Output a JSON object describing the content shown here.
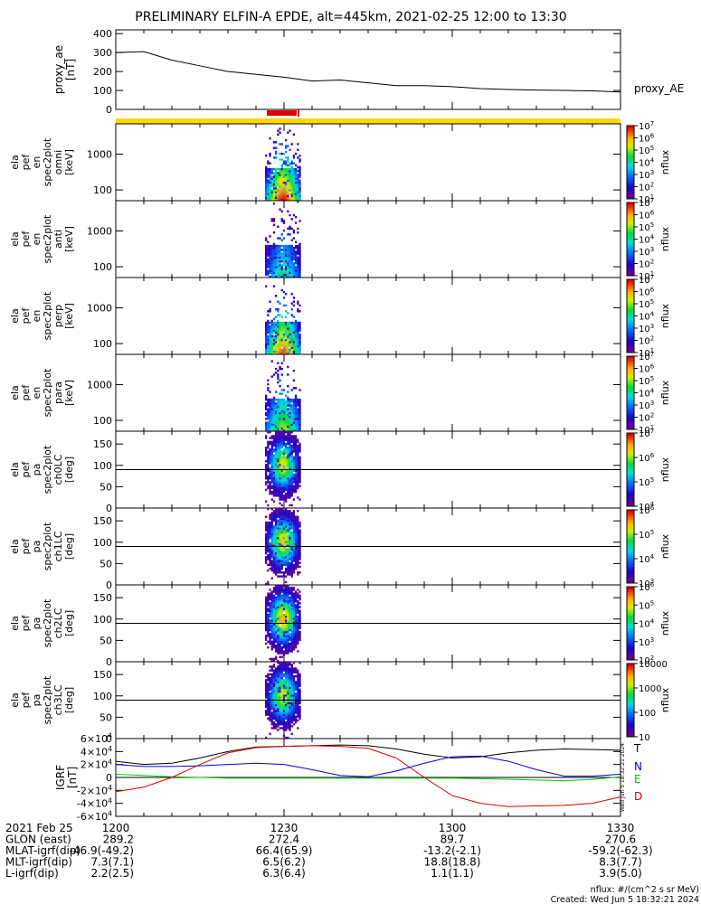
{
  "title": "PRELIMINARY ELFIN-A EPDE, alt=445km, 2021-02-25 12:00 to 13:30",
  "colors": {
    "ae_line": "#000000",
    "flag_yellow": "#ffd700",
    "flag_red": "#e00000",
    "igrf_T": "#000000",
    "igrf_N": "#0000dd",
    "igrf_E": "#00cc00",
    "igrf_D": "#dd0000"
  },
  "chart_data": [
    {
      "type": "line",
      "ylabel": "proxy_ae [nT]",
      "ylabel_lines": [
        "proxy_ae",
        "[nT]"
      ],
      "yticks": [
        "0",
        "100",
        "200",
        "300",
        "400"
      ],
      "ylim": [
        0,
        420
      ],
      "legend": [
        "proxy_AE"
      ],
      "x": [
        "12:00",
        "12:05",
        "12:10",
        "12:15",
        "12:20",
        "12:25",
        "12:30",
        "12:35",
        "12:40",
        "12:45",
        "12:50",
        "12:55",
        "13:00",
        "13:05",
        "13:10",
        "13:15",
        "13:20",
        "13:25",
        "13:30"
      ],
      "values": [
        300,
        305,
        260,
        230,
        200,
        185,
        170,
        150,
        155,
        140,
        125,
        125,
        120,
        110,
        105,
        102,
        100,
        98,
        92
      ]
    },
    {
      "type": "heatmap",
      "ylabel_lines": [
        "ela",
        "pef",
        "en",
        "spec2plot",
        "omni",
        "[keV]"
      ],
      "scale": "log",
      "yticks": [
        "100",
        "1000"
      ],
      "zlabel": "nflux",
      "zticks": [
        "10^1",
        "10^2",
        "10^3",
        "10^4",
        "10^5",
        "10^6",
        "10^7"
      ]
    },
    {
      "type": "heatmap",
      "ylabel_lines": [
        "ela",
        "pef",
        "en",
        "spec2plot",
        "anti",
        "[keV]"
      ],
      "scale": "log",
      "yticks": [
        "100",
        "1000"
      ],
      "zlabel": "nflux",
      "zticks": [
        "10^1",
        "10^2",
        "10^3",
        "10^4",
        "10^5",
        "10^6",
        "10^7"
      ]
    },
    {
      "type": "heatmap",
      "ylabel_lines": [
        "ela",
        "pef",
        "en",
        "spec2plot",
        "perp",
        "[keV]"
      ],
      "scale": "log",
      "yticks": [
        "100",
        "1000"
      ],
      "zlabel": "nflux",
      "zticks": [
        "10^1",
        "10^2",
        "10^3",
        "10^4",
        "10^5",
        "10^6",
        "10^7"
      ]
    },
    {
      "type": "heatmap",
      "ylabel_lines": [
        "ela",
        "pef",
        "en",
        "spec2plot",
        "para",
        "[keV]"
      ],
      "scale": "log",
      "yticks": [
        "100",
        "1000"
      ],
      "zlabel": "nflux",
      "zticks": [
        "10^1",
        "10^2",
        "10^3",
        "10^4",
        "10^5",
        "10^6",
        "10^7"
      ]
    },
    {
      "type": "heatmap",
      "ylabel_lines": [
        "ela",
        "pef",
        "pa",
        "spec2plot",
        "ch0LC",
        "[deg]"
      ],
      "yticks": [
        "0",
        "50",
        "100",
        "150"
      ],
      "ylim": [
        0,
        180
      ],
      "zlabel": "nflux",
      "zticks": [
        "10^4",
        "10^5",
        "10^6",
        "10^7"
      ]
    },
    {
      "type": "heatmap",
      "ylabel_lines": [
        "ela",
        "pef",
        "pa",
        "spec2plot",
        "ch1LC",
        "[deg]"
      ],
      "yticks": [
        "0",
        "50",
        "100",
        "150"
      ],
      "ylim": [
        0,
        180
      ],
      "zlabel": "nflux",
      "zticks": [
        "10^3",
        "10^4",
        "10^5",
        "10^6"
      ]
    },
    {
      "type": "heatmap",
      "ylabel_lines": [
        "ela",
        "pef",
        "pa",
        "spec2plot",
        "ch2LC",
        "[deg]"
      ],
      "yticks": [
        "0",
        "50",
        "100",
        "150"
      ],
      "ylim": [
        0,
        180
      ],
      "zlabel": "nflux",
      "zticks": [
        "10^2",
        "10^3",
        "10^4",
        "10^5",
        "10^6"
      ]
    },
    {
      "type": "heatmap",
      "ylabel_lines": [
        "ela",
        "pef",
        "pa",
        "spec2plot",
        "ch3LC",
        "[deg]"
      ],
      "yticks": [
        "0",
        "50",
        "100",
        "150"
      ],
      "ylim": [
        0,
        180
      ],
      "zlabel": "nflux",
      "zticks": [
        "10",
        "100",
        "1000",
        "10000"
      ]
    },
    {
      "type": "line",
      "ylabel_lines": [
        "IGRF",
        "[nT]"
      ],
      "yticks": [
        "-6×10^4",
        "-4×10^4",
        "-2×10^4",
        "0",
        "2×10^4",
        "4×10^4",
        "6×10^4"
      ],
      "ylim": [
        -60000,
        60000
      ],
      "legend": [
        "T",
        "N",
        "E",
        "D"
      ],
      "x": [
        "12:00",
        "12:05",
        "12:10",
        "12:15",
        "12:20",
        "12:25",
        "12:30",
        "12:35",
        "12:40",
        "12:45",
        "12:50",
        "12:55",
        "13:00",
        "13:05",
        "13:10",
        "13:15",
        "13:20",
        "13:25",
        "13:30"
      ],
      "series": [
        {
          "name": "T",
          "values": [
            25000,
            20000,
            22000,
            30000,
            40000,
            47000,
            48000,
            49000,
            50000,
            49000,
            44000,
            36000,
            30000,
            32000,
            38000,
            42000,
            44000,
            43000,
            42000
          ]
        },
        {
          "name": "N",
          "values": [
            20000,
            17000,
            17000,
            18000,
            20000,
            22000,
            20000,
            12000,
            3000,
            1000,
            10000,
            22000,
            32000,
            33000,
            25000,
            12000,
            2000,
            2000,
            5000
          ]
        },
        {
          "name": "E",
          "values": [
            5000,
            3000,
            1000,
            0,
            -1000,
            -1000,
            -1000,
            -1000,
            -1000,
            -1000,
            -1000,
            -1000,
            -1000,
            -2000,
            -3000,
            -4000,
            -5000,
            -3000,
            1000
          ]
        },
        {
          "name": "D",
          "values": [
            -22000,
            -15000,
            0,
            20000,
            38000,
            46000,
            48000,
            49000,
            48000,
            45000,
            30000,
            0,
            -28000,
            -40000,
            -45000,
            -44000,
            -43000,
            -40000,
            -30000
          ]
        }
      ]
    }
  ],
  "heatmap_axis_marker": "+",
  "time_axis": {
    "rows": [
      {
        "label": "2021 Feb 25",
        "values": [
          "1200",
          "1230",
          "1300",
          "1330"
        ]
      },
      {
        "label": "GLON (east)",
        "values": [
          "289.2",
          "272.4",
          "89.7",
          "270.6"
        ]
      },
      {
        "label": "MLAT-igrf(dip)",
        "values": [
          "-46.9(-49.2)",
          "66.4(65.9)",
          "-13.2(-2.1)",
          "-59.2(-62.3)"
        ]
      },
      {
        "label": "MLT-igrf(dip)",
        "values": [
          "7.3(7.1)",
          "6.5(6.2)",
          "18.8(18.8)",
          "8.3(7.7)"
        ]
      },
      {
        "label": "L-igrf(dip)",
        "values": [
          "2.2(2.5)",
          "6.3(6.4)",
          "1.1(1.1)",
          "3.9(5.0)"
        ]
      }
    ]
  },
  "footer": {
    "units": "nflux: #/(cm^2 s sr MeV)",
    "created": "Created: Wed Jun  5 18:32:21 2024"
  },
  "side_stamp": "Wed Jun 5 18:32:21 2024"
}
